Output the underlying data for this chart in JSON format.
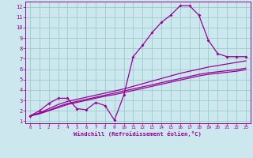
{
  "xlabel": "Windchill (Refroidissement éolien,°C)",
  "bg_color": "#cce8ee",
  "line_color": "#990099",
  "grid_color": "#99cccc",
  "xlim": [
    -0.5,
    23.5
  ],
  "ylim": [
    0.8,
    12.5
  ],
  "xticks": [
    0,
    1,
    2,
    3,
    4,
    5,
    6,
    7,
    8,
    9,
    10,
    11,
    12,
    13,
    14,
    15,
    16,
    17,
    18,
    19,
    20,
    21,
    22,
    23
  ],
  "yticks": [
    1,
    2,
    3,
    4,
    5,
    6,
    7,
    8,
    9,
    10,
    11,
    12
  ],
  "series1_x": [
    0,
    1,
    2,
    3,
    4,
    5,
    6,
    7,
    8,
    9,
    10,
    11,
    12,
    13,
    14,
    15,
    16,
    17,
    18,
    19,
    20,
    21,
    22,
    23
  ],
  "series1_y": [
    1.5,
    2.0,
    2.7,
    3.2,
    3.2,
    2.2,
    2.1,
    2.8,
    2.5,
    1.1,
    3.5,
    7.2,
    8.3,
    9.5,
    10.5,
    11.2,
    12.1,
    12.1,
    11.2,
    8.8,
    7.5,
    7.2,
    7.2,
    7.2
  ],
  "series2_x": [
    0,
    1,
    2,
    3,
    4,
    5,
    6,
    7,
    8,
    9,
    10,
    11,
    12,
    13,
    14,
    15,
    16,
    17,
    18,
    19,
    20,
    21,
    22,
    23
  ],
  "series2_y": [
    1.5,
    1.8,
    2.2,
    2.6,
    2.9,
    3.1,
    3.3,
    3.5,
    3.7,
    3.9,
    4.1,
    4.35,
    4.6,
    4.85,
    5.1,
    5.35,
    5.6,
    5.8,
    6.0,
    6.2,
    6.35,
    6.5,
    6.65,
    6.8
  ],
  "series3_x": [
    0,
    1,
    2,
    3,
    4,
    5,
    6,
    7,
    8,
    9,
    10,
    11,
    12,
    13,
    14,
    15,
    16,
    17,
    18,
    19,
    20,
    21,
    22,
    23
  ],
  "series3_y": [
    1.5,
    1.75,
    2.05,
    2.4,
    2.7,
    2.9,
    3.1,
    3.3,
    3.5,
    3.7,
    3.9,
    4.1,
    4.3,
    4.5,
    4.7,
    4.9,
    5.1,
    5.3,
    5.5,
    5.65,
    5.75,
    5.85,
    5.95,
    6.1
  ],
  "series4_x": [
    0,
    1,
    2,
    3,
    4,
    5,
    6,
    7,
    8,
    9,
    10,
    11,
    12,
    13,
    14,
    15,
    16,
    17,
    18,
    19,
    20,
    21,
    22,
    23
  ],
  "series4_y": [
    1.5,
    1.7,
    2.0,
    2.3,
    2.6,
    2.8,
    3.0,
    3.2,
    3.4,
    3.55,
    3.75,
    3.95,
    4.15,
    4.35,
    4.55,
    4.75,
    4.95,
    5.15,
    5.35,
    5.5,
    5.6,
    5.7,
    5.8,
    5.95
  ]
}
